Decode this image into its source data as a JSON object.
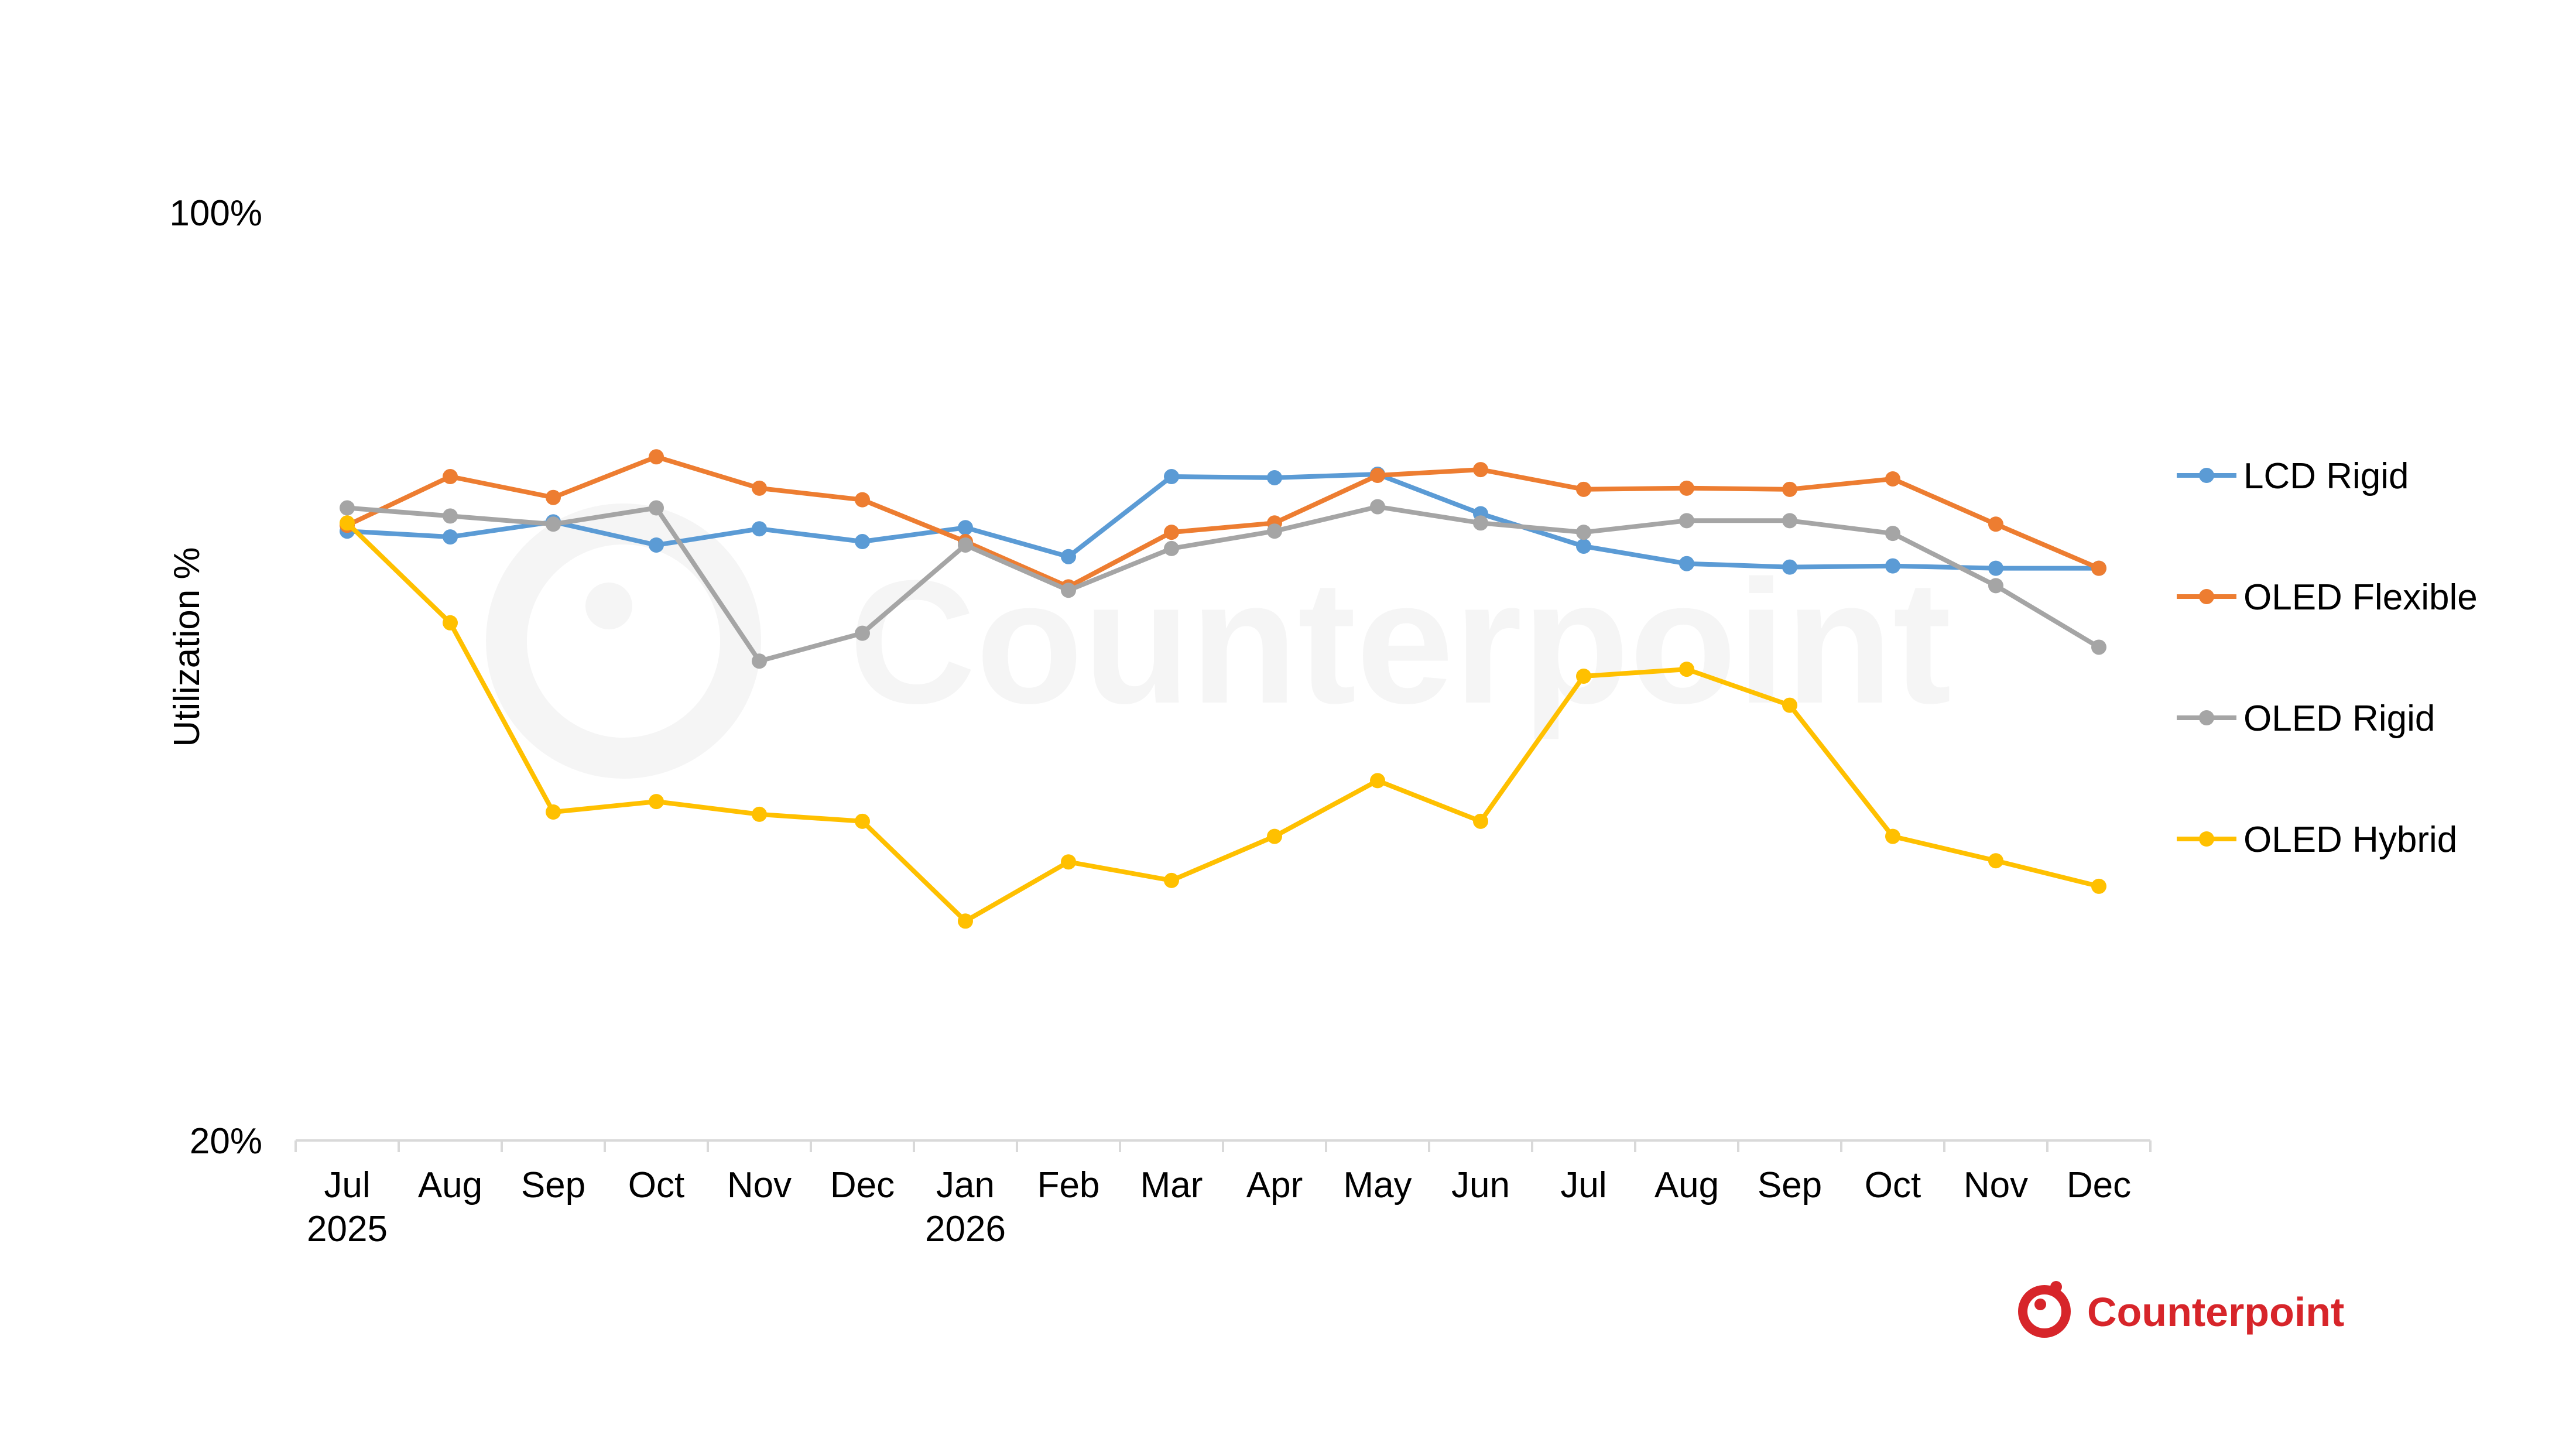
{
  "chart_data": {
    "type": "line",
    "ylabel": "Utilization %",
    "y_ticks": [
      "100%",
      "20%"
    ],
    "ylim": [
      20,
      100
    ],
    "grid": false,
    "legend_position": "right",
    "categories": [
      "Jul",
      "Aug",
      "Sep",
      "Oct",
      "Nov",
      "Dec",
      "Jan",
      "Feb",
      "Mar",
      "Apr",
      "May",
      "Jun",
      "Jul",
      "Aug",
      "Sep",
      "Oct",
      "Nov",
      "Dec"
    ],
    "category_years": [
      "2025",
      "",
      "",
      "",
      "",
      "",
      "2026",
      "",
      "",
      "",
      "",
      "",
      "",
      "",
      "",
      "",
      "",
      ""
    ],
    "series": [
      {
        "name": "LCD Rigid",
        "color": "#5B9BD5",
        "values": [
          72.5,
          72.0,
          73.3,
          71.3,
          72.7,
          71.6,
          72.8,
          70.3,
          77.2,
          77.1,
          77.4,
          74.0,
          71.2,
          69.7,
          69.4,
          69.5,
          69.3,
          69.3
        ]
      },
      {
        "name": "OLED Flexible",
        "color": "#ED7D31",
        "values": [
          73.0,
          77.2,
          75.4,
          78.9,
          76.2,
          75.2,
          71.6,
          67.7,
          72.4,
          73.2,
          77.3,
          77.8,
          76.1,
          76.2,
          76.1,
          77.0,
          73.1,
          69.3
        ]
      },
      {
        "name": "OLED Rigid",
        "color": "#A5A5A5",
        "values": [
          74.5,
          73.8,
          73.1,
          74.5,
          61.3,
          63.7,
          71.3,
          67.4,
          71.0,
          72.5,
          74.6,
          73.2,
          72.4,
          73.4,
          73.4,
          72.3,
          67.8,
          62.5
        ]
      },
      {
        "name": "OLED Hybrid",
        "color": "#FFC000",
        "values": [
          73.2,
          64.6,
          48.3,
          49.2,
          48.1,
          47.5,
          38.9,
          44.0,
          42.4,
          46.2,
          51.0,
          47.5,
          60.0,
          60.6,
          57.5,
          46.2,
          44.1,
          41.9
        ]
      }
    ]
  },
  "logo": {
    "text": "Counterpoint",
    "color": "#D7252A",
    "icon": "counterpoint-logo-icon"
  },
  "watermark": {
    "text": "Counterpoint",
    "icon": "counterpoint-watermark-icon"
  }
}
